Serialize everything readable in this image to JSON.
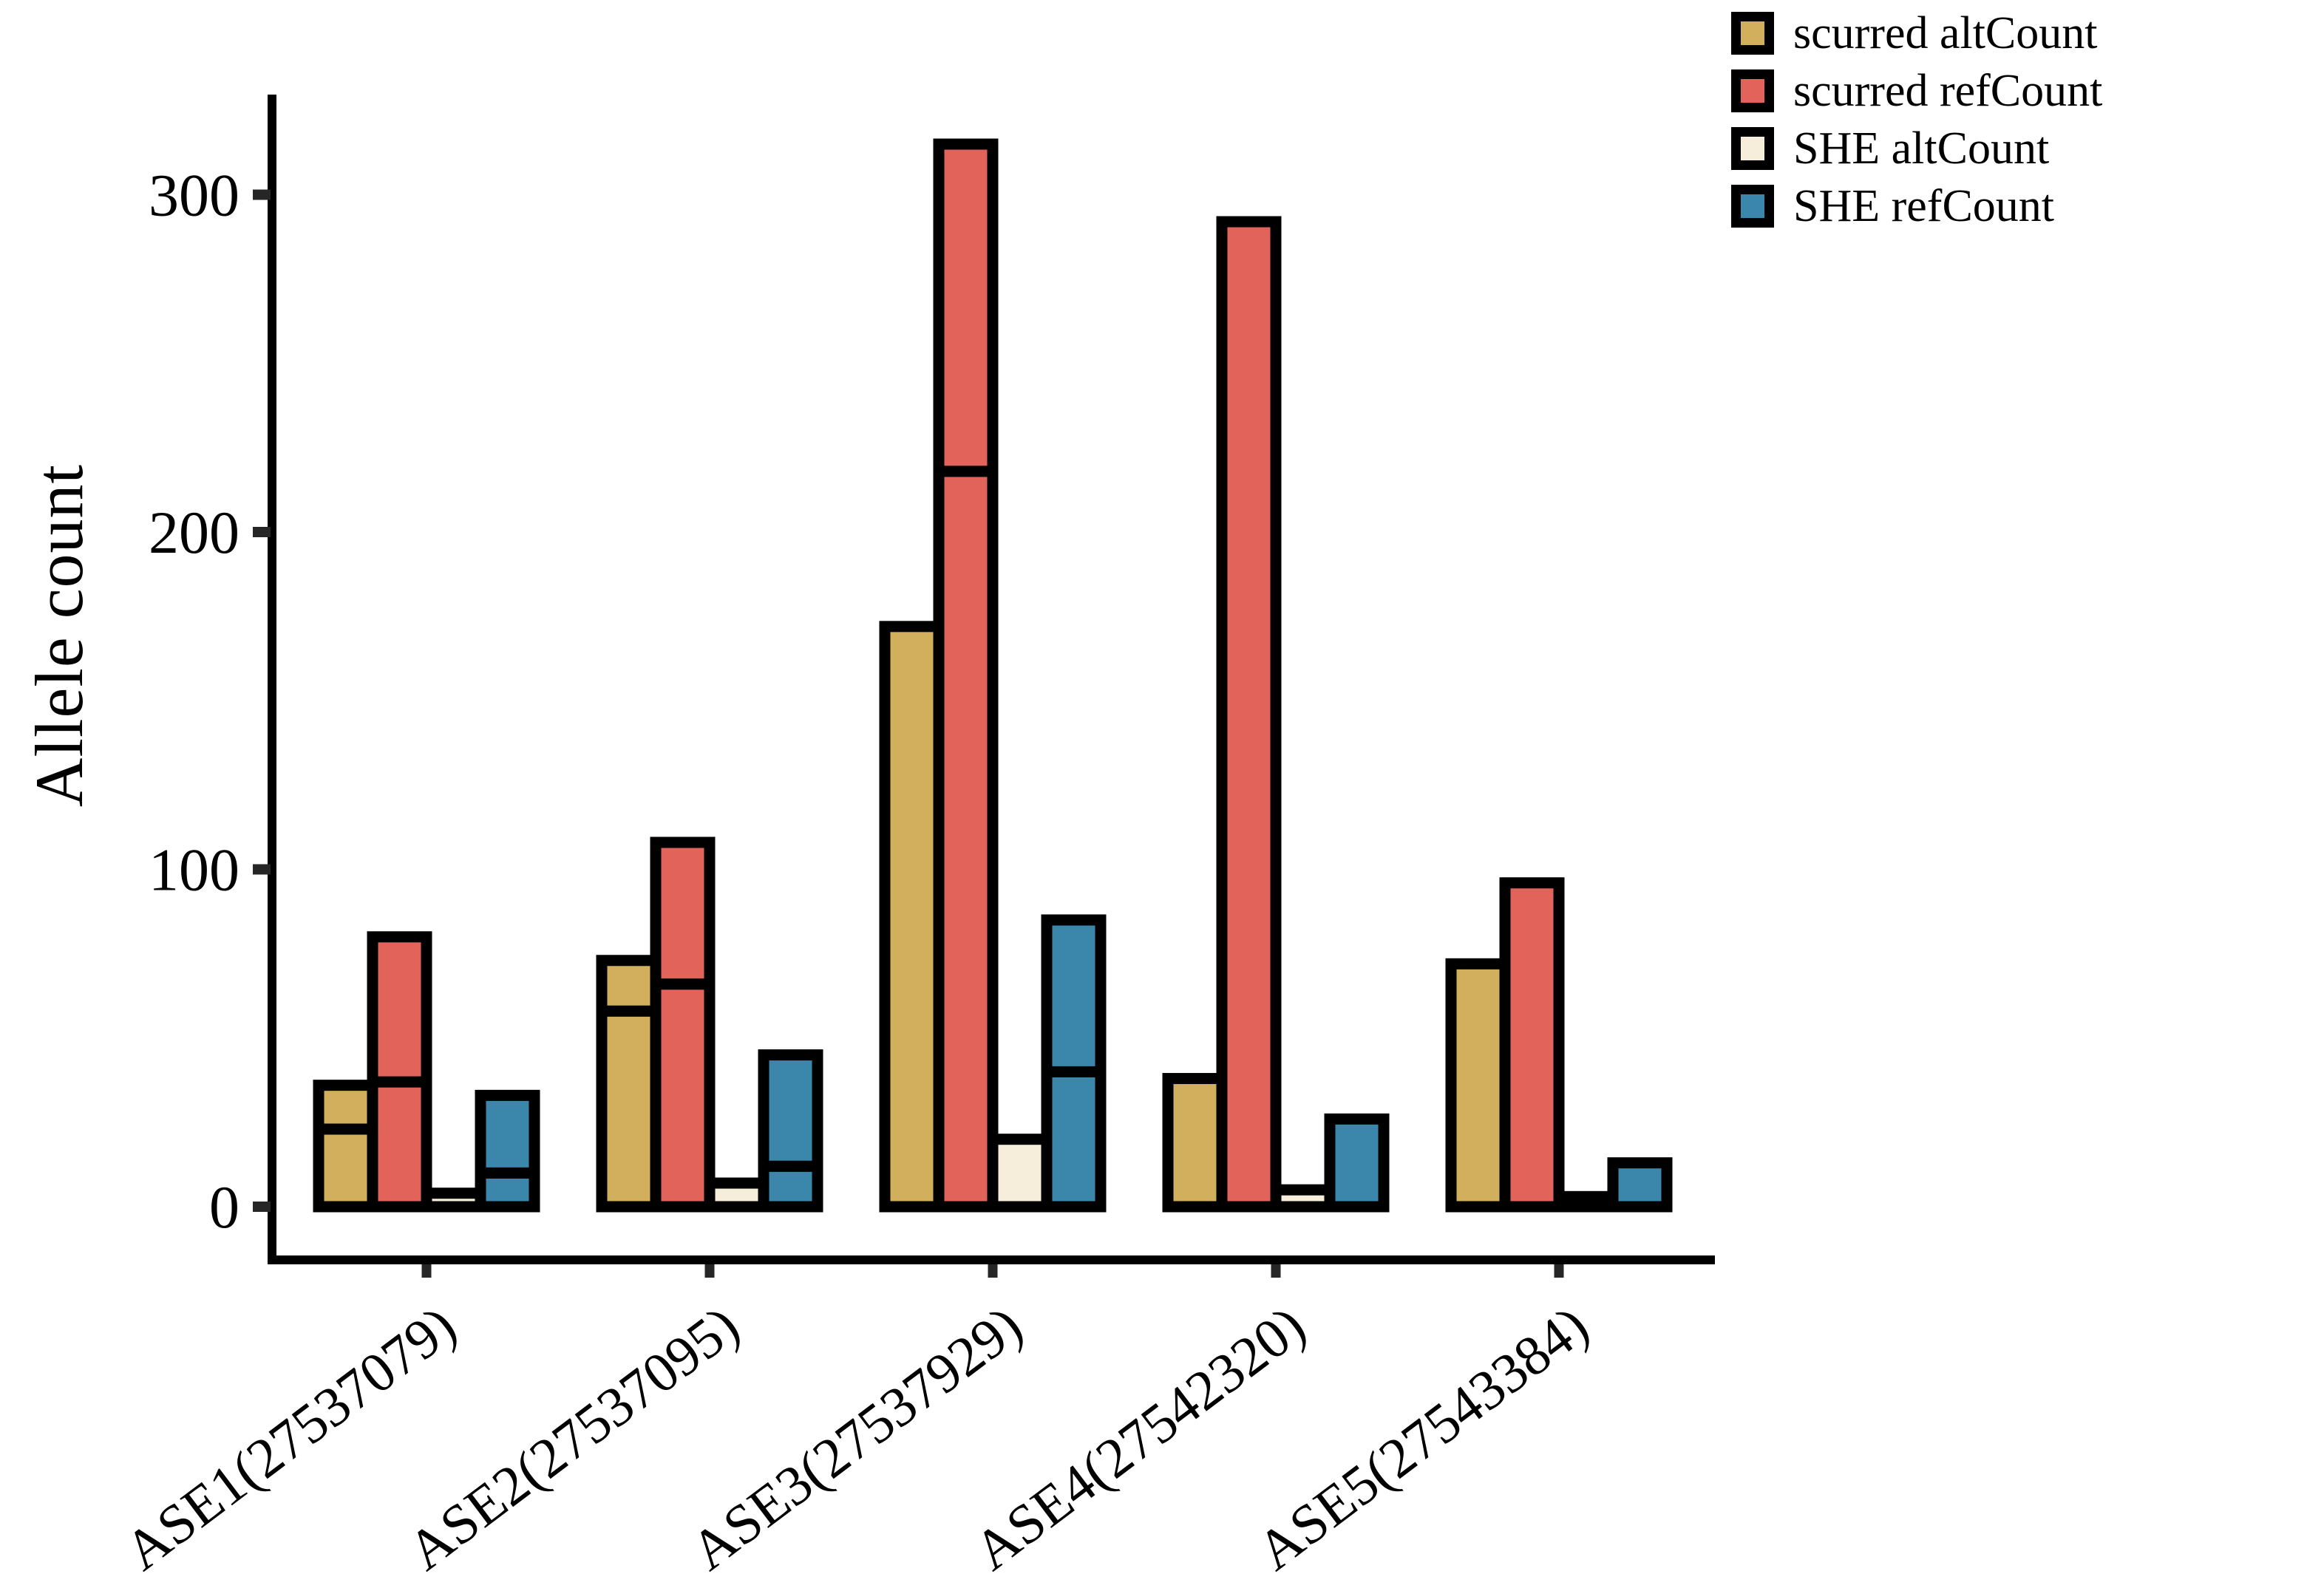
{
  "chart_data": {
    "type": "bar",
    "variant": "grouped-stacked",
    "title": "",
    "xlabel": "",
    "ylabel": "Allele count",
    "ylim": [
      0,
      330
    ],
    "yticks": [
      0,
      100,
      200,
      300
    ],
    "grid": false,
    "legend_position": "top-right",
    "bar_outline_color": "#000000",
    "tick_color": "#262626",
    "axis_color": "#000000",
    "categories": [
      "ASE1(27537079)",
      "ASE2(27537095)",
      "ASE3(27537929)",
      "ASE4(27542320)",
      "ASE5(27543384)"
    ],
    "series": [
      {
        "name": "scurred altCount",
        "color": "#D2AF5C",
        "segments": [
          [
            23,
            13
          ],
          [
            58,
            15
          ],
          [
            172
          ],
          [
            38
          ],
          [
            72
          ]
        ],
        "totals": [
          36,
          73,
          172,
          38,
          72
        ]
      },
      {
        "name": "scurred refCount",
        "color": "#E2635A",
        "segments": [
          [
            37,
            43
          ],
          [
            66,
            42
          ],
          [
            218,
            97
          ],
          [
            292
          ],
          [
            96
          ]
        ],
        "totals": [
          80,
          108,
          315,
          292,
          96
        ]
      },
      {
        "name": "SHE altCount",
        "color": "#F6EEDA",
        "segments": [
          [
            4
          ],
          [
            7
          ],
          [
            20
          ],
          [
            5
          ],
          [
            3
          ]
        ],
        "totals": [
          4,
          7,
          20,
          5,
          3
        ]
      },
      {
        "name": "SHE refCount",
        "color": "#3B87AC",
        "segments": [
          [
            10,
            23
          ],
          [
            12,
            33
          ],
          [
            40,
            45
          ],
          [
            26
          ],
          [
            13
          ]
        ],
        "totals": [
          33,
          45,
          85,
          26,
          13
        ]
      }
    ]
  }
}
